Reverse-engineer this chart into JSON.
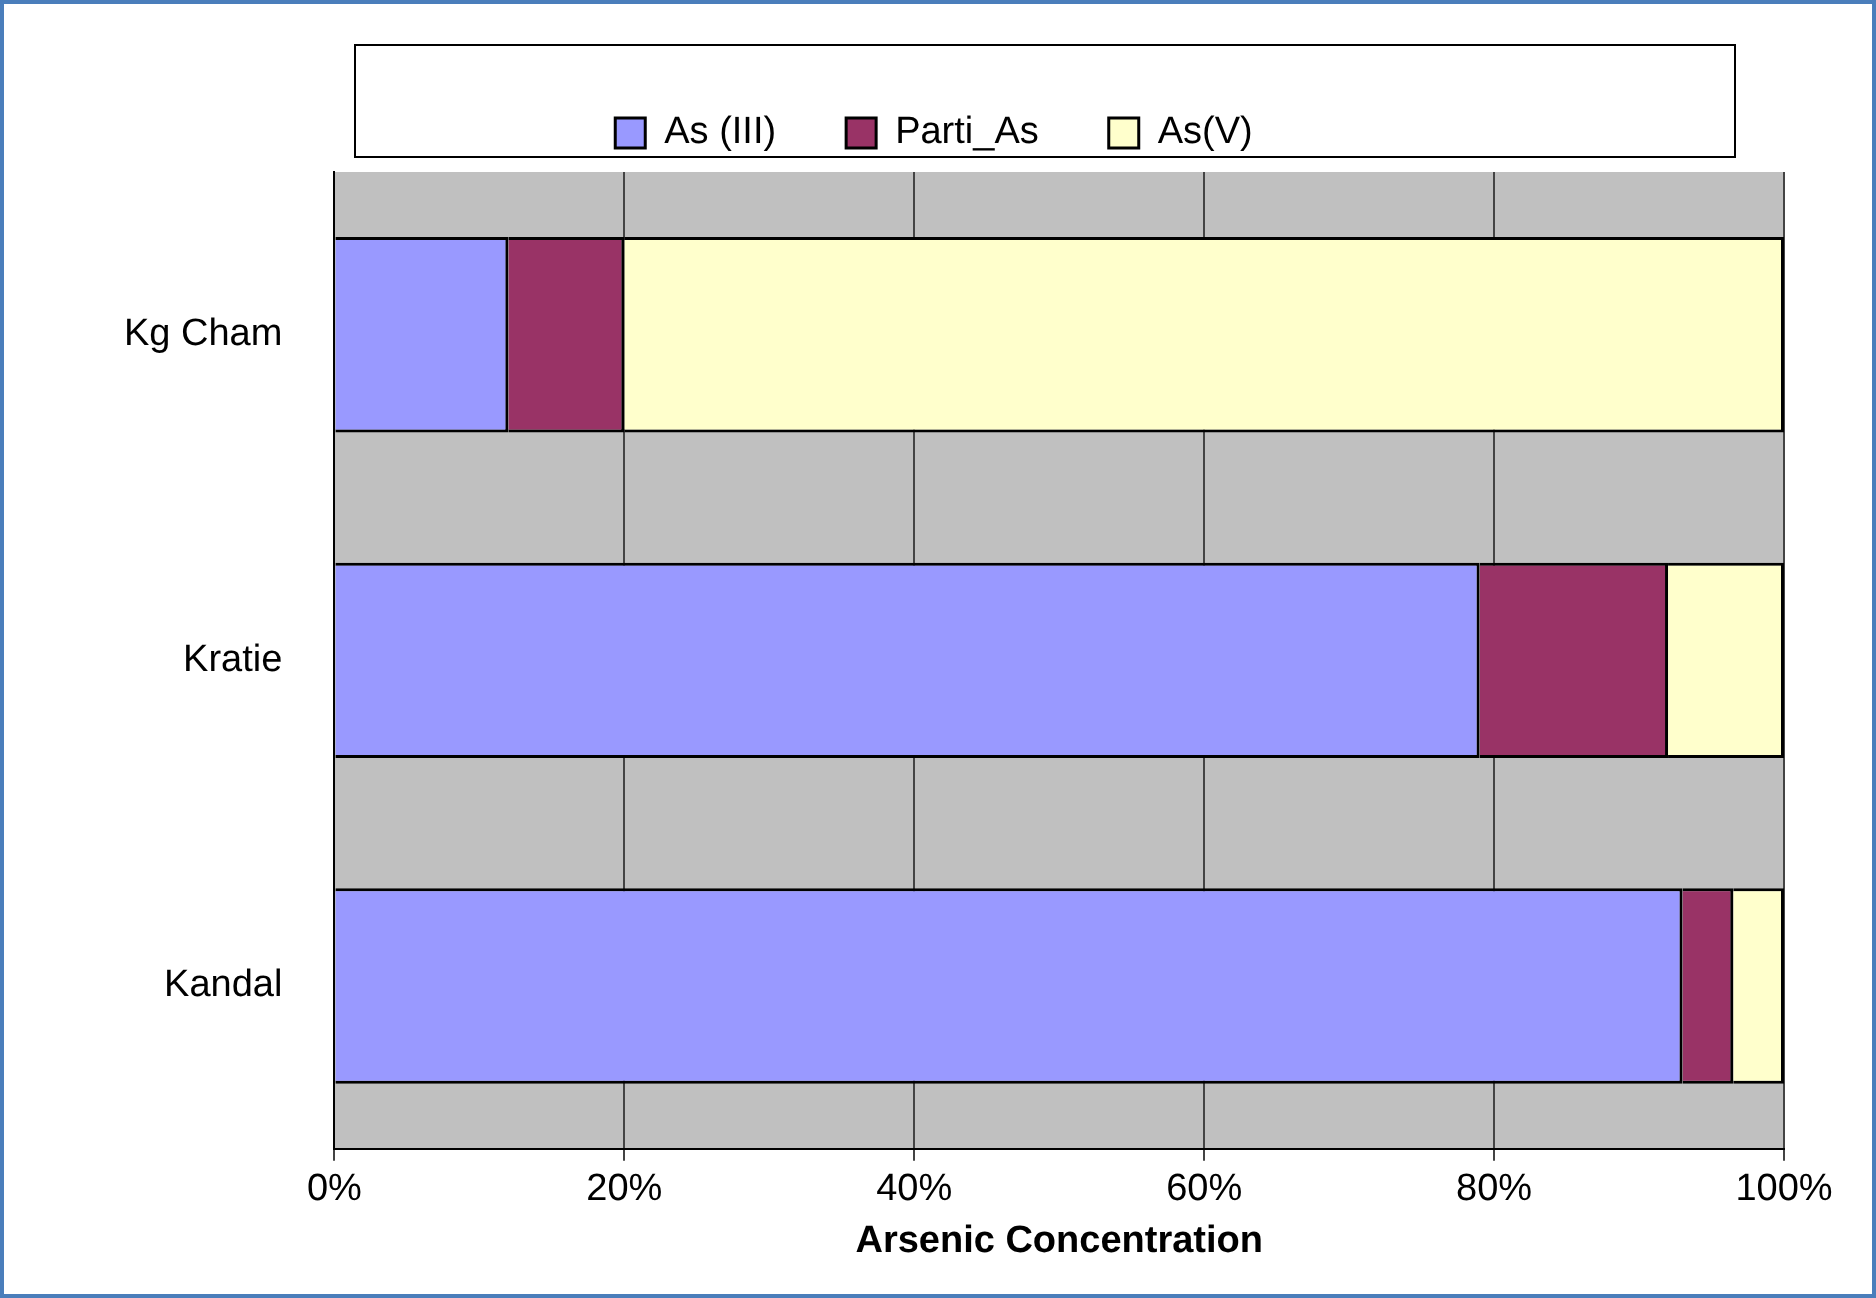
{
  "chart_data": {
    "type": "bar",
    "orientation": "horizontal",
    "stacked": true,
    "xlabel": "Arsenic Concentration",
    "categories": [
      "Kg Cham",
      "Kratie",
      "Kandal"
    ],
    "series": [
      {
        "name": "As (III)",
        "color": "#9999ff",
        "values": [
          12,
          79,
          93
        ]
      },
      {
        "name": "Parti_As",
        "color": "#993366",
        "values": [
          8,
          13,
          3.5
        ]
      },
      {
        "name": "As(V)",
        "color": "#ffffcc",
        "values": [
          80,
          8,
          3.5
        ]
      }
    ],
    "xlim": [
      0,
      100
    ],
    "xticks": [
      {
        "value": 0,
        "label": "0%"
      },
      {
        "value": 20,
        "label": "20%"
      },
      {
        "value": 40,
        "label": "40%"
      },
      {
        "value": 60,
        "label": "60%"
      },
      {
        "value": 80,
        "label": "80%"
      },
      {
        "value": 100,
        "label": "100%"
      }
    ],
    "grid": "x",
    "legend": "top"
  }
}
